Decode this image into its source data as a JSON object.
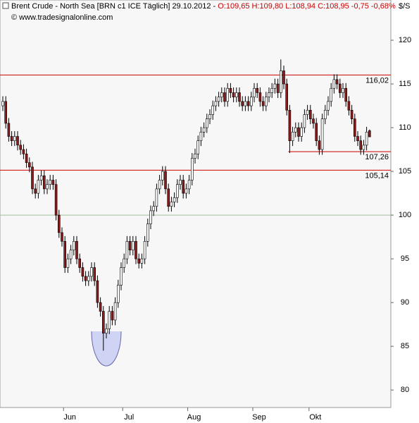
{
  "chart_data": {
    "type": "candlestick",
    "title": "Brent Crude - North Sea [BRN c1 ICE  Täglich] 29.10.2012 -",
    "quote": "O:109,65 H:109,80 L:108,94 C:108,95 -0,75 -0,68%",
    "subtitle": "© www.tradesignalonline.com",
    "y_unit": "$/S",
    "up_color": "#ffffff",
    "down_color": "#8b1a1a",
    "open": [
      112.5,
      113,
      110.5,
      109,
      108.5,
      109,
      108,
      107.5,
      107,
      106,
      105.5,
      103,
      102.5,
      104,
      104.5,
      103,
      103.5,
      104,
      103.5,
      100,
      98,
      97,
      94,
      95,
      96,
      97,
      95,
      94,
      93,
      92.5,
      93,
      94,
      92.5,
      90,
      89,
      86.5,
      87,
      89,
      88,
      90,
      92,
      94,
      95,
      97,
      96,
      97,
      95,
      94.5,
      95,
      97,
      99,
      100.5,
      101,
      103,
      104,
      105,
      103,
      101,
      101.5,
      102,
      103.5,
      104,
      102.5,
      103,
      104,
      106.5,
      107,
      108.5,
      109.5,
      110,
      111,
      111.5,
      112.5,
      113,
      113.5,
      114,
      113,
      114.5,
      114,
      113.5,
      114,
      113,
      112.5,
      113,
      112.5,
      113.5,
      114.5,
      114,
      113,
      112.5,
      113.5,
      114,
      114.5,
      115,
      114,
      116.5,
      115,
      112,
      108.5,
      109.5,
      110,
      109,
      110,
      111.5,
      112,
      111,
      110.5,
      108.5,
      107.5,
      111,
      112,
      113,
      114.5,
      115.5,
      115,
      114,
      114.5,
      113,
      112,
      111,
      109,
      108.5,
      107.5,
      108,
      109.65
    ],
    "high": [
      113.6,
      113.6,
      111.1,
      109.6,
      109.6,
      109.6,
      108.6,
      108.1,
      107.6,
      106.6,
      106.1,
      103.6,
      104.6,
      105.1,
      105.1,
      104.1,
      104.6,
      104.6,
      104.1,
      100.6,
      98.6,
      97.6,
      95.6,
      96.6,
      97.6,
      97.6,
      95.6,
      94.6,
      93.6,
      93.6,
      94.6,
      94.6,
      93.1,
      90.6,
      89.6,
      87.6,
      89.6,
      89.6,
      90.6,
      92.6,
      94.6,
      95.6,
      97.6,
      97.6,
      97.6,
      97.6,
      95.6,
      95.6,
      97.6,
      99.6,
      101.1,
      101.6,
      103.6,
      104.6,
      105.6,
      105.6,
      103.6,
      102.1,
      102.6,
      104.1,
      104.6,
      104.6,
      103.6,
      104.6,
      107.1,
      107.6,
      109.1,
      110.1,
      110.6,
      111.6,
      112.1,
      113.1,
      113.6,
      114.1,
      114.6,
      114.6,
      115.1,
      115.1,
      114.6,
      114.6,
      114.6,
      113.6,
      113.6,
      113.6,
      114.1,
      115.1,
      115.1,
      114.6,
      113.6,
      114.1,
      114.6,
      115.1,
      115.6,
      115.6,
      117.8,
      117.1,
      115.6,
      112.6,
      110.1,
      110.6,
      110.6,
      110.6,
      112.1,
      112.6,
      112.6,
      111.6,
      111.1,
      109.1,
      111.6,
      112.6,
      113.6,
      115.1,
      116.1,
      116.1,
      115.6,
      115.1,
      115.1,
      113.6,
      112.6,
      111.6,
      109.6,
      109.1,
      108.6,
      110.1,
      109.8
    ],
    "low": [
      111.9,
      109.9,
      108.4,
      107.9,
      107.9,
      107.4,
      106.9,
      106.4,
      105.4,
      104.9,
      102.4,
      101.9,
      101.9,
      103.4,
      102.4,
      102.4,
      102.9,
      102.9,
      99.4,
      97.4,
      96.4,
      93.4,
      93.4,
      94.4,
      95.4,
      94.4,
      93.4,
      92.4,
      91.9,
      91.9,
      92.4,
      91.9,
      89.4,
      88.4,
      84.5,
      85.9,
      86.4,
      87.4,
      87.4,
      89.4,
      91.4,
      93.4,
      94.4,
      95.4,
      95.4,
      94.4,
      93.9,
      93.9,
      94.4,
      96.4,
      98.4,
      99.9,
      100.4,
      102.4,
      103.4,
      102.4,
      100.4,
      100.4,
      100.9,
      101.4,
      102.9,
      101.9,
      101.9,
      102.4,
      103.4,
      105.9,
      106.4,
      107.9,
      108.9,
      109.4,
      110.4,
      110.9,
      111.9,
      112.4,
      112.9,
      112.4,
      112.4,
      113.4,
      112.9,
      112.9,
      112.4,
      111.9,
      111.9,
      111.9,
      111.9,
      112.9,
      113.4,
      112.4,
      111.9,
      111.9,
      112.9,
      113.4,
      113.9,
      113.4,
      113.4,
      114.4,
      111.4,
      107.1,
      107.9,
      108.9,
      108.4,
      108.4,
      109.4,
      110.9,
      110.4,
      109.9,
      107.9,
      106.9,
      106.9,
      110.4,
      111.4,
      112.4,
      113.9,
      114.4,
      113.4,
      113.4,
      112.4,
      111.4,
      110.4,
      108.4,
      107.9,
      106.9,
      106.9,
      107.4,
      108.94
    ],
    "close": [
      113,
      110.5,
      109,
      108.5,
      109,
      108,
      107.5,
      107,
      106,
      105.5,
      103,
      102.5,
      104,
      104.5,
      103,
      103.5,
      104,
      103.5,
      100,
      98,
      97,
      94,
      95,
      96,
      97,
      95,
      94,
      93,
      92.5,
      93,
      94,
      92.5,
      90,
      89,
      86.5,
      87,
      89,
      88,
      90,
      92,
      94,
      95,
      97,
      96,
      97,
      95,
      94.5,
      95,
      97,
      99,
      100.5,
      101,
      103,
      104,
      105,
      103,
      101,
      101.5,
      102,
      103.5,
      104,
      102.5,
      103,
      104,
      106.5,
      107,
      108.5,
      109.5,
      110,
      111,
      111.5,
      112.5,
      113,
      113.5,
      114,
      113,
      114.5,
      114,
      113.5,
      114,
      113,
      112.5,
      113,
      112.5,
      113.5,
      114.5,
      114,
      113,
      112.5,
      113.5,
      114,
      114.5,
      115,
      114,
      116.5,
      115,
      112,
      108.5,
      109.5,
      110,
      109,
      110,
      111.5,
      112,
      111,
      110.5,
      108.5,
      107.5,
      111,
      112,
      113,
      114.5,
      115.5,
      115,
      114,
      114.5,
      113,
      112,
      111,
      109,
      108.5,
      107.5,
      108,
      109.5,
      108.95
    ],
    "xticks": [
      {
        "value": 21,
        "label": "Jun"
      },
      {
        "value": 41,
        "label": "Jul"
      },
      {
        "value": 63,
        "label": "Aug"
      },
      {
        "value": 85,
        "label": "Sep"
      },
      {
        "value": 104,
        "label": "Okt"
      }
    ],
    "ylim": [
      78,
      124.6
    ],
    "yticks": [
      80,
      85,
      90,
      95,
      100,
      105,
      110,
      115,
      120
    ],
    "reference_line": 100,
    "levels": [
      {
        "value": 116.02,
        "label": "116,02",
        "from": 0
      },
      {
        "value": 107.26,
        "label": "107,26",
        "from": 97
      },
      {
        "value": 105.14,
        "label": "105,14",
        "from": 0
      }
    ],
    "level_color": "#cc0000"
  }
}
